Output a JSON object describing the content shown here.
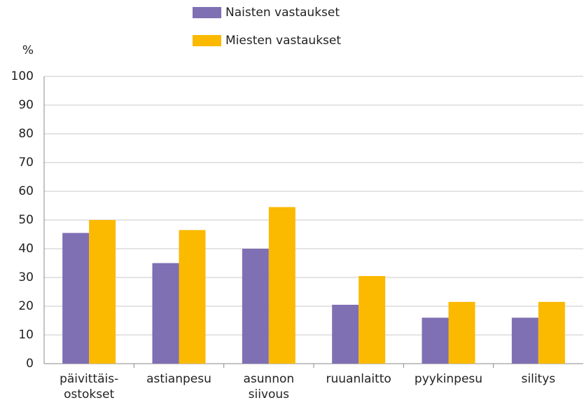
{
  "chart_data": {
    "type": "bar",
    "y_axis_label": "%",
    "categories": [
      "päivittäis-\nostokset",
      "astianpesu",
      "asunnon\nsiivous",
      "ruuanlaitto",
      "pyykinpesu",
      "silitys"
    ],
    "series": [
      {
        "name": "Naisten vastaukset",
        "color": "#7f6fb3",
        "values": [
          45.5,
          35,
          40,
          20.5,
          16,
          16
        ]
      },
      {
        "name": "Miesten vastaukset",
        "color": "#fbb900",
        "values": [
          50,
          46.5,
          54.5,
          30.5,
          21.5,
          21.5
        ]
      }
    ],
    "ylim": [
      0,
      100
    ],
    "yticks": [
      0,
      10,
      20,
      30,
      40,
      50,
      60,
      70,
      80,
      90,
      100
    ],
    "grid": true,
    "legend": "top"
  }
}
